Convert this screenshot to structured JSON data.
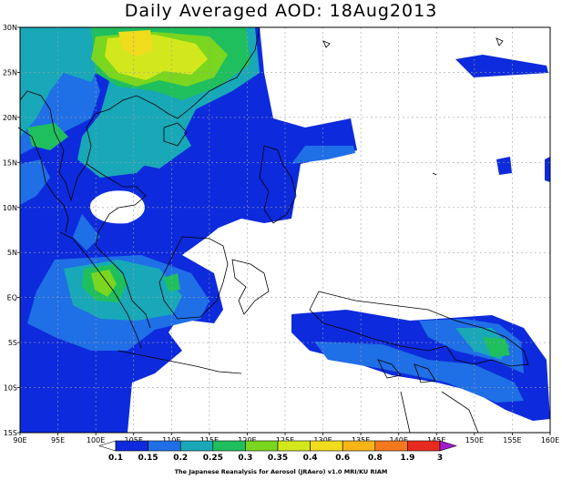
{
  "title": "Daily Averaged AOD: 18Aug2013",
  "credit": "The Japanese Reanalysis for Aerosol (JRAero) v1.0 MRI/KU RIAM",
  "colors": {
    "land_outline": "#000000",
    "grid": "#a0a0a0",
    "levels": [
      "#ffffff",
      "#0d2bdc",
      "#1f6fe6",
      "#18a8b8",
      "#1fbf5e",
      "#7ad61e",
      "#d2e81c",
      "#f0dc1c",
      "#f7b51a",
      "#f5781e",
      "#e82b1e",
      "#a21cd0"
    ]
  },
  "map": {
    "lon_range": [
      90,
      160
    ],
    "lat_range": [
      -15,
      30
    ],
    "lon_ticks": [
      {
        "lon": 90,
        "label": "90E"
      },
      {
        "lon": 95,
        "label": "95E"
      },
      {
        "lon": 100,
        "label": "100E"
      },
      {
        "lon": 105,
        "label": "105E"
      },
      {
        "lon": 110,
        "label": "110E"
      },
      {
        "lon": 115,
        "label": "115E"
      },
      {
        "lon": 120,
        "label": "120E"
      },
      {
        "lon": 125,
        "label": "125E"
      },
      {
        "lon": 130,
        "label": "130E"
      },
      {
        "lon": 135,
        "label": "135E"
      },
      {
        "lon": 140,
        "label": "140E"
      },
      {
        "lon": 145,
        "label": "145E"
      },
      {
        "lon": 150,
        "label": "150E"
      },
      {
        "lon": 155,
        "label": "155E"
      },
      {
        "lon": 160,
        "label": "160E"
      }
    ],
    "lat_ticks": [
      {
        "lat": 30,
        "label": "30N"
      },
      {
        "lat": 25,
        "label": "25N"
      },
      {
        "lat": 20,
        "label": "20N"
      },
      {
        "lat": 15,
        "label": "15N"
      },
      {
        "lat": 10,
        "label": "10N"
      },
      {
        "lat": 5,
        "label": "5N"
      },
      {
        "lat": 0,
        "label": "EQ"
      },
      {
        "lat": -5,
        "label": "5S"
      },
      {
        "lat": -10,
        "label": "10S"
      },
      {
        "lat": -15,
        "label": "15S"
      }
    ]
  },
  "colorbar": {
    "labels": [
      "0.1",
      "0.15",
      "0.2",
      "0.25",
      "0.3",
      "0.35",
      "0.4",
      "0.6",
      "0.8",
      "1.9",
      "3"
    ]
  }
}
